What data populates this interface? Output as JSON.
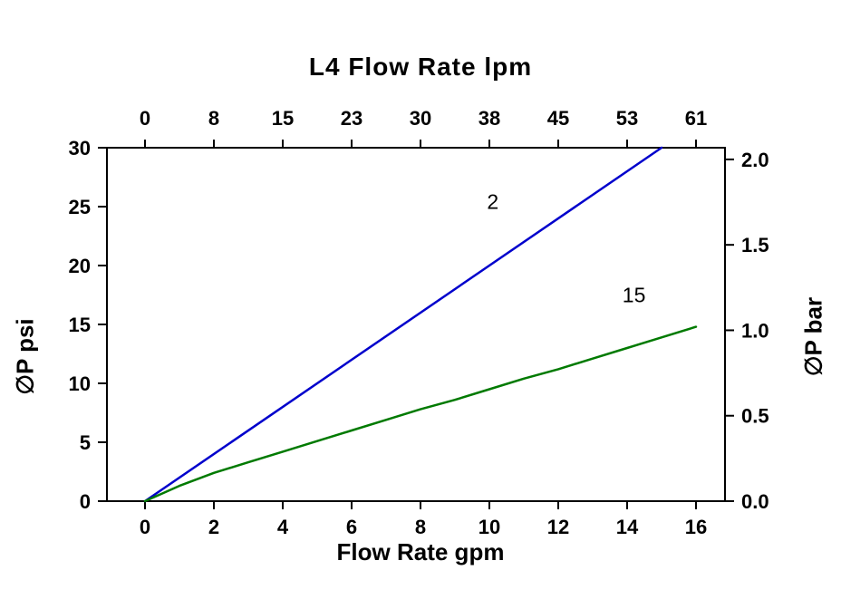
{
  "title": "L4  Flow Rate lpm",
  "axes": {
    "top": {
      "label": "L4  Flow Rate lpm",
      "ticks": [
        "0",
        "8",
        "15",
        "23",
        "30",
        "38",
        "45",
        "53",
        "61"
      ]
    },
    "bottom": {
      "label": "Flow Rate gpm",
      "ticks": [
        "0",
        "2",
        "4",
        "6",
        "8",
        "10",
        "12",
        "14",
        "16"
      ]
    },
    "left": {
      "label": "∅P psi",
      "ticks": [
        "0",
        "5",
        "10",
        "15",
        "20",
        "25",
        "30"
      ]
    },
    "right": {
      "label": "∅P bar",
      "ticks": [
        "0.0",
        "0.5",
        "1.0",
        "1.5",
        "2.0"
      ]
    }
  },
  "chart_data": {
    "type": "line",
    "title": "L4  Flow Rate lpm",
    "xlabel_top": "L4  Flow Rate lpm",
    "xlabel_bottom": "Flow Rate gpm",
    "ylabel_left": "∅P psi",
    "ylabel_right": "∅P bar",
    "xlim_gpm": [
      0,
      16
    ],
    "ylim_psi": [
      0,
      30
    ],
    "ylim_bar": [
      0,
      2.0
    ],
    "top_ticks_lpm": [
      0,
      8,
      15,
      23,
      30,
      38,
      45,
      53,
      61
    ],
    "bottom_ticks_gpm": [
      0,
      2,
      4,
      6,
      8,
      10,
      12,
      14,
      16
    ],
    "left_ticks_psi": [
      0,
      5,
      10,
      15,
      20,
      25,
      30
    ],
    "right_ticks_bar": [
      0.0,
      0.5,
      1.0,
      1.5,
      2.0
    ],
    "psi_per_bar": 14.5038,
    "grid": false,
    "legend": "inline-labels",
    "series": [
      {
        "name": "2",
        "color": "#0000CC",
        "label_pos": {
          "x": 10.1,
          "y": 24.8
        },
        "points": [
          [
            0,
            0
          ],
          [
            15,
            30
          ]
        ]
      },
      {
        "name": "15",
        "color": "#007A00",
        "label_pos": {
          "x": 14.2,
          "y": 16.9
        },
        "points": [
          [
            0,
            0
          ],
          [
            1,
            1.3
          ],
          [
            2,
            2.4
          ],
          [
            3,
            3.3
          ],
          [
            4,
            4.2
          ],
          [
            5,
            5.1
          ],
          [
            6,
            6.0
          ],
          [
            7,
            6.9
          ],
          [
            8,
            7.8
          ],
          [
            9,
            8.6
          ],
          [
            10,
            9.5
          ],
          [
            11,
            10.4
          ],
          [
            12,
            11.2
          ],
          [
            13,
            12.1
          ],
          [
            14,
            13.0
          ],
          [
            15,
            13.9
          ],
          [
            16,
            14.8
          ]
        ]
      }
    ]
  }
}
